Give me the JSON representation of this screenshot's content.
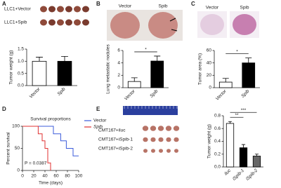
{
  "chart_data": [
    {
      "type": "bar",
      "panel": "A",
      "photo_labels": [
        "LLC1+Vector",
        "LLC1+Spib"
      ],
      "y_label": "Tumor weight (g)",
      "categories": [
        "Vector",
        "Spib"
      ],
      "values": [
        1.0,
        1.0
      ],
      "errors": [
        0.17,
        0.2
      ],
      "colors": [
        "#ffffff",
        "#000000"
      ],
      "ylim": [
        0,
        1.5
      ],
      "yticks": [
        {
          "value": 0,
          "label": "0.0"
        },
        0.5,
        {
          "value": 1,
          "label": "1.0"
        },
        1.5
      ]
    },
    {
      "type": "bar",
      "panel": "B",
      "photo_labels": [
        "Vector",
        "Spib"
      ],
      "y_label": "Lung metastatic nodules",
      "categories": [
        "Vector",
        "Spib"
      ],
      "values": [
        1.0,
        4.3
      ],
      "errors": [
        0.6,
        0.8
      ],
      "colors": [
        "#ffffff",
        "#000000"
      ],
      "ylim": [
        0,
        6
      ],
      "yticks": [
        0,
        2,
        4,
        6
      ],
      "annotations": [
        {
          "text": "*",
          "categories": [
            "Vector",
            "Spib"
          ]
        }
      ]
    },
    {
      "type": "bar",
      "panel": "C",
      "photo_labels": [
        "Vector",
        "Spib"
      ],
      "y_label": "Tumor area (%)",
      "categories": [
        "Vector",
        "Spib"
      ],
      "values": [
        9,
        40
      ],
      "errors": [
        6,
        8
      ],
      "colors": [
        "#ffffff",
        "#000000"
      ],
      "ylim": [
        0,
        60
      ],
      "yticks": [
        0,
        20,
        40,
        60
      ],
      "annotations": [
        {
          "text": "*",
          "categories": [
            "Vector",
            "Spib"
          ]
        }
      ]
    },
    {
      "type": "line",
      "panel": "D",
      "step": true,
      "title": "Survival proportions",
      "x_label": "Time (days)",
      "y_label": "Percent survival",
      "series": [
        {
          "name": "Vector",
          "color": "#3b5bdb",
          "x": [
            0,
            55,
            55,
            68,
            68,
            78,
            78,
            90,
            90,
            100
          ],
          "values": [
            100,
            100,
            83,
            83,
            67,
            67,
            50,
            50,
            33,
            33
          ]
        },
        {
          "name": "Spib",
          "color": "#e03131",
          "x": [
            0,
            28,
            28,
            35,
            35,
            40,
            40,
            45,
            45,
            50,
            50
          ],
          "values": [
            100,
            100,
            83,
            83,
            67,
            67,
            50,
            50,
            17,
            17,
            0
          ]
        }
      ],
      "xlim": [
        0,
        100
      ],
      "xticks": [
        0,
        20,
        40,
        60,
        80,
        100
      ],
      "ylim": [
        0,
        100
      ],
      "yticks": [
        0,
        50,
        100
      ],
      "annotation": "P = 0.0387",
      "legend": "right"
    },
    {
      "type": "bar",
      "panel": "E",
      "photo_labels": [
        "CMT167+iluc",
        "CMT167+iSpib-1",
        "CMT167+iSpib-2"
      ],
      "y_label": "Tumor weight (g)",
      "categories": [
        "iluc",
        "iSpib-1",
        "iSpib-2"
      ],
      "values": [
        0.68,
        0.3,
        0.17
      ],
      "errors": [
        0.03,
        0.05,
        0.03
      ],
      "colors": [
        "#ffffff",
        "#000000",
        "#666666"
      ],
      "ylim": [
        0,
        0.8
      ],
      "yticks": [
        {
          "value": 0,
          "label": "0.0"
        },
        0.2,
        0.4,
        0.6,
        0.8
      ],
      "annotations": [
        {
          "text": "**",
          "categories": [
            "iluc",
            "iSpib-1"
          ]
        },
        {
          "text": "***",
          "categories": [
            "iluc",
            "iSpib-2"
          ]
        }
      ]
    }
  ]
}
